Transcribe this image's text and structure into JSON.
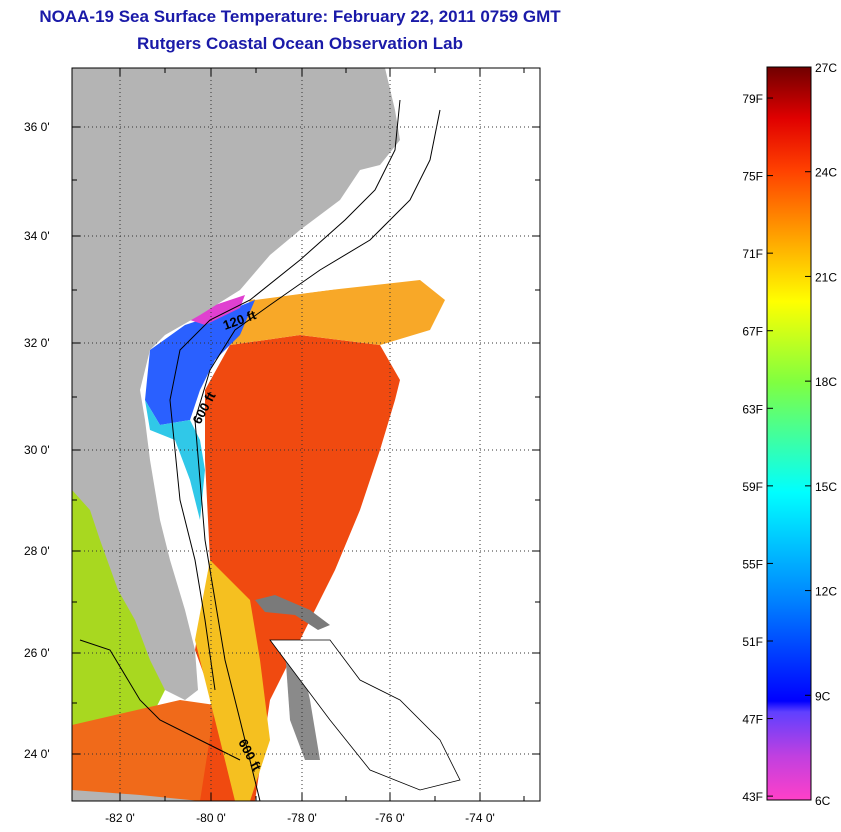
{
  "title": "NOAA-19 Sea Surface Temperature:  February 22, 2011 0759 GMT",
  "subtitle": "Rutgers Coastal Ocean Observation Lab",
  "map": {
    "lat_labels": [
      "36 0'",
      "34 0'",
      "32 0'",
      "30 0'",
      "28 0'",
      "26 0'",
      "24 0'"
    ],
    "lon_labels": [
      "-82 0'",
      "-80 0'",
      "-78 0'",
      "-76 0'",
      "-74 0'"
    ],
    "bathymetry_labels": [
      "120 ft",
      "600 ft",
      "600 ft"
    ],
    "colors": {
      "land": "#b4b4b4",
      "no_data": "#ffffff",
      "warm": "#f04a10",
      "cold": "#2030ff"
    }
  },
  "colorbar": {
    "fahrenheit_labels": [
      "79F",
      "75F",
      "71F",
      "67F",
      "63F",
      "59F",
      "55F",
      "51F",
      "47F",
      "43F"
    ],
    "celsius_labels": [
      "27C",
      "24C",
      "21C",
      "18C",
      "15C",
      "12C",
      "9C",
      "6C"
    ],
    "celsius_range": [
      6,
      27
    ]
  }
}
